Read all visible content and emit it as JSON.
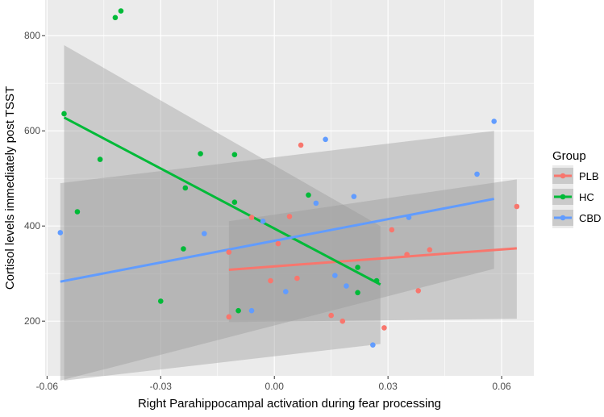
{
  "chart_data": {
    "type": "scatter",
    "xlabel": "Right Parahippocampal activation during fear processing",
    "ylabel": "Cortisol levels immediately post TSST",
    "xlim": [
      -0.0605,
      0.0685
    ],
    "ylim": [
      85,
      875
    ],
    "x_ticks": [
      -0.06,
      -0.03,
      0.0,
      0.03,
      0.06
    ],
    "x_tick_labels": [
      "-0.06",
      "-0.03",
      "0.00",
      "0.03",
      "0.06"
    ],
    "y_ticks": [
      200,
      400,
      600,
      800
    ],
    "y_tick_labels": [
      "200",
      "400",
      "600",
      "800"
    ],
    "grid": true,
    "legend": {
      "title": "Group",
      "placement": "right"
    },
    "series": [
      {
        "name": "PLB",
        "color": "#F8766D",
        "points": [
          [
            -0.012,
            345
          ],
          [
            -0.012,
            209
          ],
          [
            -0.006,
            418
          ],
          [
            -0.001,
            285
          ],
          [
            0.001,
            363
          ],
          [
            0.004,
            420
          ],
          [
            0.006,
            290
          ],
          [
            0.007,
            570
          ],
          [
            0.015,
            212
          ],
          [
            0.018,
            200
          ],
          [
            0.029,
            186
          ],
          [
            0.031,
            392
          ],
          [
            0.035,
            340
          ],
          [
            0.038,
            264
          ],
          [
            0.041,
            350
          ],
          [
            0.064,
            441
          ]
        ],
        "fit": {
          "x": [
            -0.012,
            0.064
          ],
          "y": [
            308,
            353
          ]
        },
        "ci_band": {
          "x": [
            -0.012,
            0.064
          ],
          "upper": [
            410,
            498
          ],
          "lower": [
            198,
            205
          ]
        }
      },
      {
        "name": "HC",
        "color": "#00BA38",
        "points": [
          [
            -0.0555,
            636
          ],
          [
            -0.052,
            430
          ],
          [
            -0.046,
            540
          ],
          [
            -0.042,
            838
          ],
          [
            -0.0405,
            852
          ],
          [
            -0.03,
            242
          ],
          [
            -0.024,
            352
          ],
          [
            -0.0235,
            480
          ],
          [
            -0.0195,
            552
          ],
          [
            -0.0105,
            450
          ],
          [
            -0.0105,
            550
          ],
          [
            -0.0095,
            222
          ],
          [
            0.009,
            465
          ],
          [
            0.022,
            313
          ],
          [
            0.022,
            260
          ],
          [
            0.027,
            285
          ]
        ],
        "fit": {
          "x": [
            -0.0555,
            0.028
          ],
          "y": [
            628,
            277
          ]
        },
        "ci_band": {
          "x": [
            -0.0555,
            0.028
          ],
          "upper": [
            780,
            400
          ],
          "lower": [
            75,
            152
          ]
        }
      },
      {
        "name": "CBD",
        "color": "#619CFF",
        "points": [
          [
            -0.0565,
            386
          ],
          [
            -0.0185,
            384
          ],
          [
            -0.006,
            222
          ],
          [
            -0.003,
            410
          ],
          [
            0.003,
            262
          ],
          [
            0.011,
            448
          ],
          [
            0.0135,
            582
          ],
          [
            0.016,
            296
          ],
          [
            0.019,
            274
          ],
          [
            0.021,
            462
          ],
          [
            0.026,
            150
          ],
          [
            0.0355,
            418
          ],
          [
            0.0535,
            509
          ],
          [
            0.058,
            620
          ]
        ],
        "fit": {
          "x": [
            -0.0565,
            0.058
          ],
          "y": [
            283,
            457
          ]
        },
        "ci_band": {
          "x": [
            -0.0565,
            0.058
          ],
          "upper": [
            490,
            600
          ],
          "lower": [
            75,
            310
          ]
        }
      }
    ]
  }
}
